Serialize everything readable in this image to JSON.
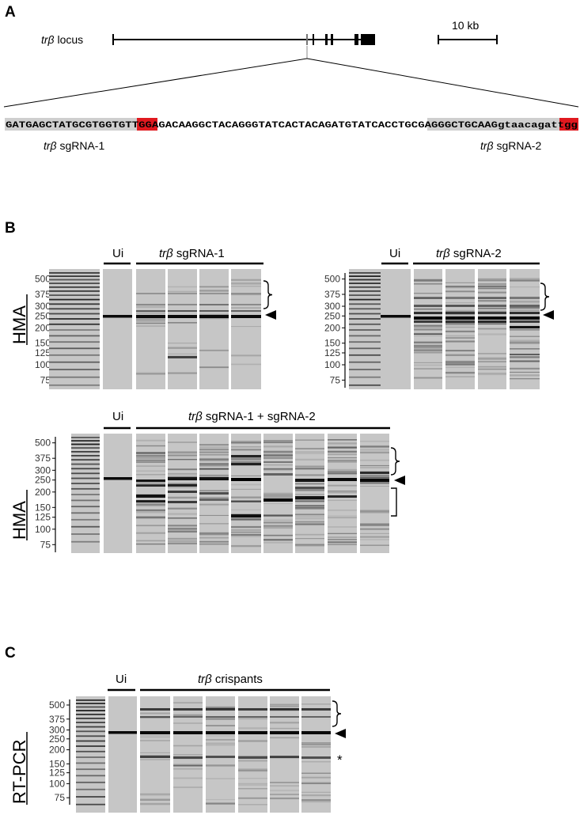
{
  "panels": {
    "a": "A",
    "b": "B",
    "c": "C"
  },
  "panel_a": {
    "locus_label_italic": "trβ",
    "locus_label_rest": " locus",
    "scale_label": "10 kb",
    "seq_part1": "GATGAGCTATGCGTGGTGT",
    "seq_pam1": "TGG",
    "seq_middle": "AGACAAGGCTACAGGGTATCACTACAGATGTATCACCTGCG",
    "seq_part2": "AGGGCTGCAAGgtaacagat",
    "seq_pam2": "tgg",
    "sg1_italic": "trβ",
    "sg1_rest": " sgRNA-1",
    "sg2_italic": "trβ",
    "sg2_rest": " sgRNA-2"
  },
  "panel_b": {
    "y_axis_label": "HMA",
    "ladder_ticks": [
      "500",
      "375",
      "300",
      "250",
      "200",
      "150",
      "125",
      "100",
      "75"
    ],
    "gel1": {
      "ui_label": "Ui",
      "group_italic": "trβ",
      "group_rest": "  sgRNA-1"
    },
    "gel2": {
      "ui_label": "Ui",
      "group_italic": "trβ",
      "group_rest": "  sgRNA-2"
    },
    "gel3": {
      "ui_label": "Ui",
      "group_italic": "trβ",
      "group_rest": "  sgRNA-1 + sgRNA-2"
    }
  },
  "panel_c": {
    "y_axis_label": "RT-PCR",
    "ladder_ticks": [
      "500",
      "375",
      "300",
      "250",
      "200",
      "150",
      "125",
      "100",
      "75"
    ],
    "ui_label": "Ui",
    "group_italic": "trβ",
    "group_rest": " crispants",
    "asterisk": "*"
  },
  "colors": {
    "lane_bg": "#c6c6c6",
    "pam_red": "#e0191f",
    "highlight_grey": "#cfcfcf"
  }
}
